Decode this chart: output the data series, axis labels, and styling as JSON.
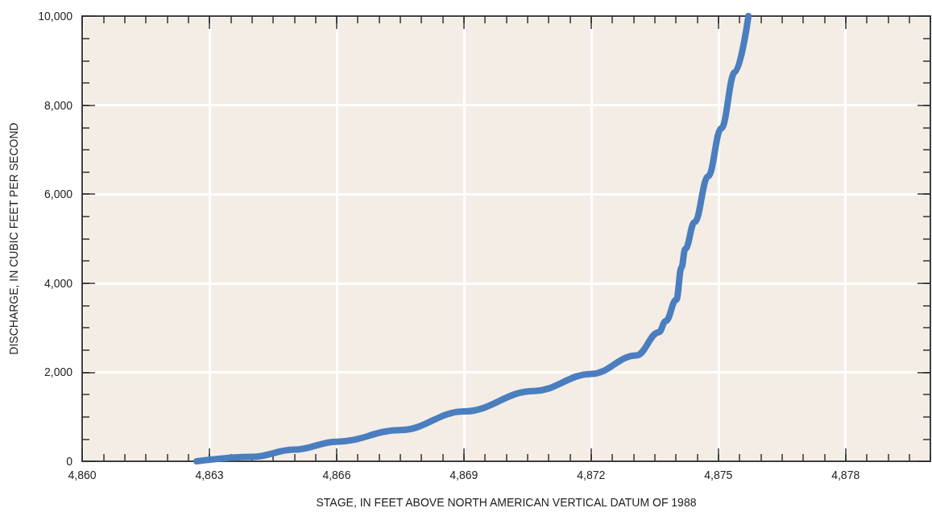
{
  "chart_data": {
    "type": "line",
    "xlabel": "STAGE, IN FEET ABOVE NORTH AMERICAN VERTICAL DATUM OF 1988",
    "ylabel": "DISCHARGE, IN CUBIC FEET PER SECOND",
    "x": [
      4862.7,
      4864.0,
      4865.0,
      4866.0,
      4867.5,
      4869.0,
      4870.65,
      4872.0,
      4873.07,
      4873.6,
      4873.76,
      4874.01,
      4874.13,
      4874.22,
      4874.44,
      4874.76,
      4875.07,
      4875.39,
      4875.71
    ],
    "series": [
      {
        "color": "#4a7ebf",
        "values": [
          0,
          100,
          260,
          440,
          700,
          1120,
          1580,
          1960,
          2380,
          2900,
          3150,
          3630,
          4350,
          4770,
          5370,
          6400,
          7480,
          8740,
          10000
        ]
      }
    ],
    "xlim": [
      4860,
      4880
    ],
    "ylim": [
      0,
      10000
    ],
    "xticks": [
      {
        "value": 4860,
        "label": "4,860"
      },
      {
        "value": 4863,
        "label": "4,863"
      },
      {
        "value": 4866,
        "label": "4,866"
      },
      {
        "value": 4869,
        "label": "4,869"
      },
      {
        "value": 4872,
        "label": "4,872"
      },
      {
        "value": 4875,
        "label": "4,875"
      },
      {
        "value": 4878,
        "label": "4,878"
      }
    ],
    "yticks": [
      0,
      {
        "value": 2000,
        "label": "2,000"
      },
      {
        "value": 4000,
        "label": "4,000"
      },
      {
        "value": 6000,
        "label": "6,000"
      },
      {
        "value": 8000,
        "label": "8,000"
      },
      {
        "value": 10000,
        "label": "10,000"
      }
    ],
    "grid": true,
    "line_style": "solid"
  }
}
